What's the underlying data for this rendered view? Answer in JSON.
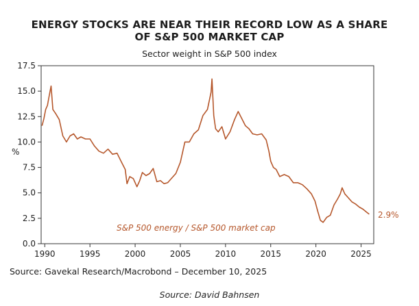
{
  "chart_data": {
    "type": "line",
    "title_line1": "ENERGY STOCKS ARE NEAR THEIR RECORD LOW AS A SHARE",
    "title_line2": "OF S&P 500 MARKET CAP",
    "subtitle": "Sector weight in S&P 500 index",
    "ylabel": "%",
    "xlim": [
      1989.6,
      2026.4
    ],
    "ylim": [
      0,
      17.5
    ],
    "y_ticks": [
      0,
      2.5,
      5,
      7.5,
      10,
      12.5,
      15,
      17.5
    ],
    "y_tick_labels": [
      "0.0",
      "2.5",
      "5.0",
      "7.5",
      "10.0",
      "12.5",
      "15.0",
      "17.5"
    ],
    "x_ticks": [
      1990,
      1995,
      2000,
      2005,
      2010,
      2015,
      2020,
      2025
    ],
    "x_tick_labels": [
      "1990",
      "1995",
      "2000",
      "2005",
      "2010",
      "2015",
      "2020",
      "2025"
    ],
    "grid": false,
    "line_color": "#b5562a",
    "series": [
      {
        "name": "S&P 500 energy / S&P 500 market cap",
        "x": [
          1989.7,
          1989.9,
          1990.1,
          1990.3,
          1990.5,
          1990.7,
          1990.9,
          1991.2,
          1991.6,
          1992.0,
          1992.4,
          1992.8,
          1993.2,
          1993.6,
          1994.0,
          1994.5,
          1995.0,
          1995.5,
          1996.0,
          1996.5,
          1997.0,
          1997.5,
          1998.0,
          1998.5,
          1998.9,
          1999.1,
          1999.4,
          1999.8,
          2000.2,
          2000.5,
          2000.8,
          2001.2,
          2001.6,
          2002.0,
          2002.4,
          2002.8,
          2003.2,
          2003.6,
          2004.0,
          2004.5,
          2005.0,
          2005.5,
          2006.0,
          2006.5,
          2007.0,
          2007.5,
          2008.0,
          2008.4,
          2008.5,
          2008.7,
          2008.9,
          2009.2,
          2009.6,
          2010.0,
          2010.5,
          2011.0,
          2011.4,
          2011.8,
          2012.2,
          2012.6,
          2013.0,
          2013.5,
          2014.0,
          2014.5,
          2014.8,
          2015.0,
          2015.3,
          2015.6,
          2016.0,
          2016.5,
          2017.0,
          2017.5,
          2018.0,
          2018.5,
          2019.0,
          2019.5,
          2019.9,
          2020.2,
          2020.5,
          2020.8,
          2021.2,
          2021.6,
          2022.0,
          2022.4,
          2022.7,
          2022.9,
          2023.2,
          2023.6,
          2024.0,
          2024.4,
          2024.8,
          2025.2,
          2025.6,
          2025.9
        ],
        "values": [
          11.6,
          12.3,
          13.2,
          13.6,
          14.6,
          15.5,
          13.2,
          12.8,
          12.2,
          10.6,
          10.0,
          10.6,
          10.8,
          10.3,
          10.5,
          10.3,
          10.3,
          9.6,
          9.1,
          8.9,
          9.3,
          8.8,
          8.9,
          8.0,
          7.3,
          5.9,
          6.6,
          6.4,
          5.6,
          6.2,
          7.0,
          6.7,
          6.9,
          7.4,
          6.1,
          6.2,
          5.9,
          6.0,
          6.4,
          6.9,
          8.0,
          10.0,
          10.0,
          10.8,
          11.2,
          12.6,
          13.2,
          14.9,
          16.2,
          12.6,
          11.3,
          11.0,
          11.5,
          10.3,
          11.0,
          12.2,
          13.0,
          12.3,
          11.6,
          11.3,
          10.8,
          10.7,
          10.8,
          10.2,
          9.1,
          8.1,
          7.5,
          7.3,
          6.6,
          6.8,
          6.6,
          6.0,
          6.0,
          5.8,
          5.4,
          4.9,
          4.2,
          3.2,
          2.3,
          2.1,
          2.6,
          2.8,
          3.8,
          4.4,
          4.9,
          5.5,
          4.9,
          4.5,
          4.1,
          3.9,
          3.6,
          3.4,
          3.1,
          2.9
        ]
      }
    ],
    "annotations": [
      {
        "text": "S&P 500 energy / S&P 500 market cap"
      },
      {
        "text": "2.9%"
      }
    ],
    "source": "Source: Gavekal Research/Macrobond – December 10, 2025",
    "credit": "Source: David Bahnsen"
  }
}
